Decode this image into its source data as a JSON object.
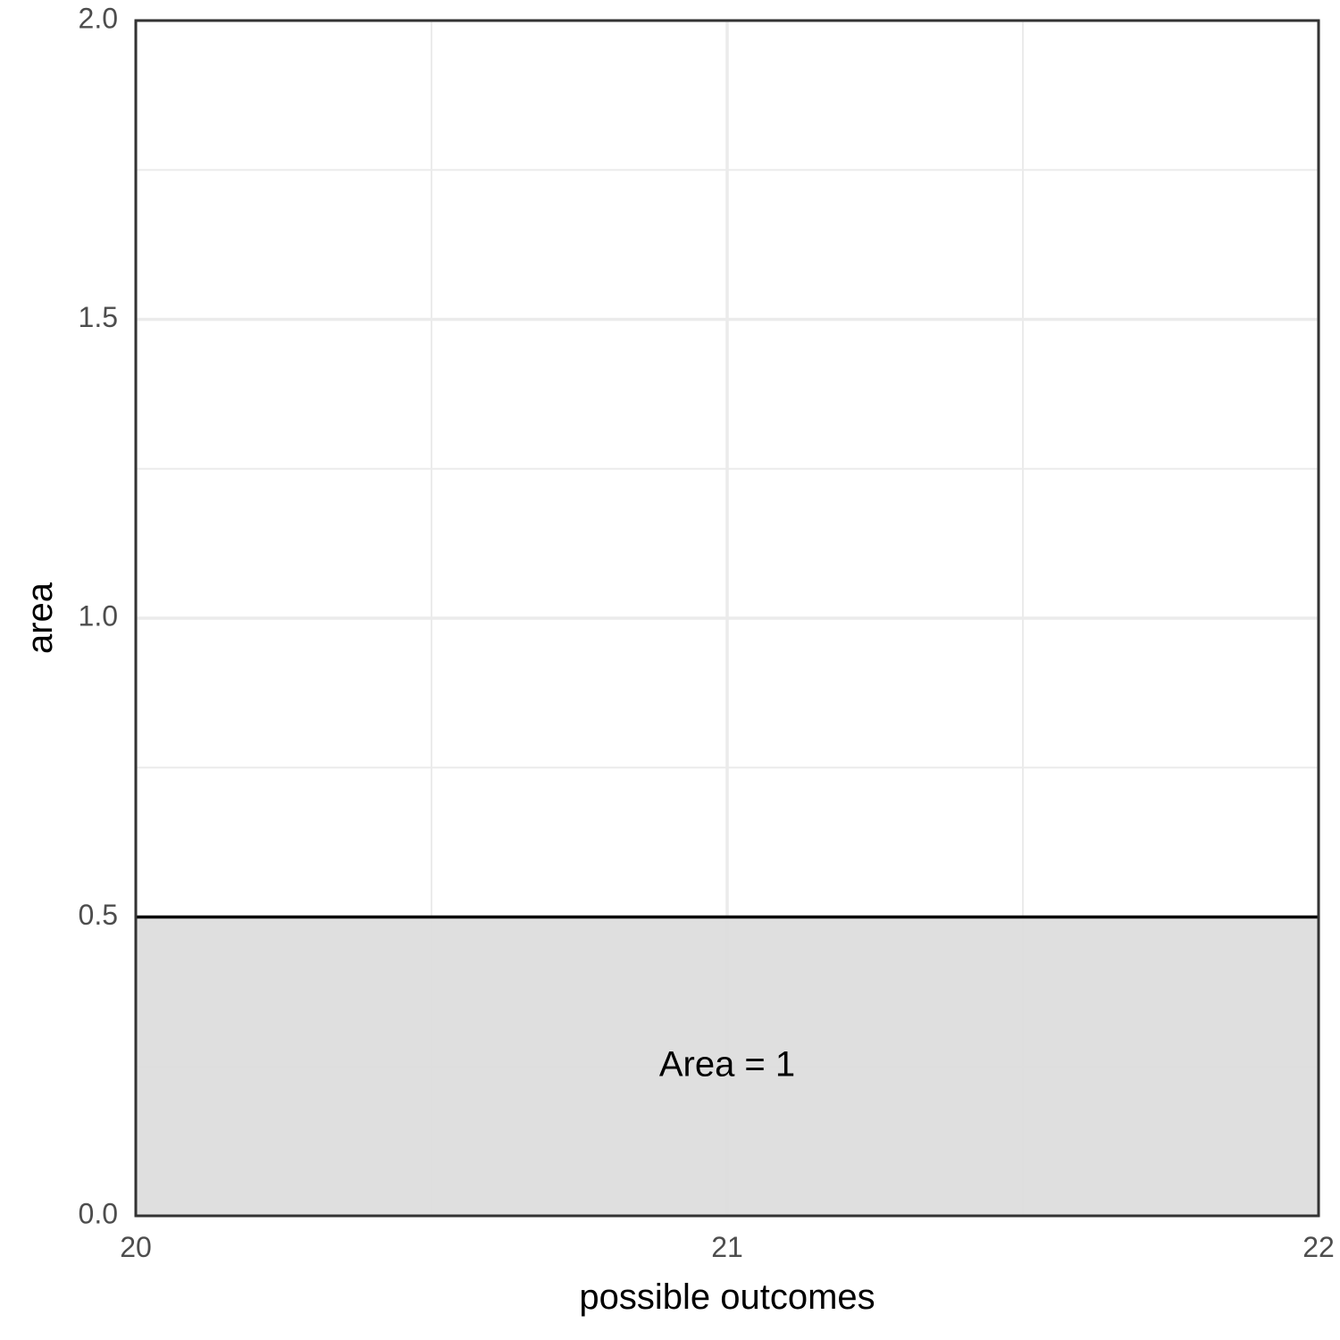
{
  "chart_data": {
    "type": "area",
    "xlabel": "possible outcomes",
    "ylabel": "area",
    "xlim": [
      20,
      22
    ],
    "ylim": [
      0,
      2
    ],
    "x_ticks": [
      20,
      21,
      22
    ],
    "x_tick_labels": [
      "20",
      "21",
      "22"
    ],
    "y_ticks": [
      0,
      0.5,
      1,
      1.5,
      2
    ],
    "y_tick_labels": [
      "0.0",
      "0.5",
      "1.0",
      "1.5",
      "2.0"
    ],
    "grid": true,
    "series": [
      {
        "x": [
          20,
          22
        ],
        "y": [
          0.5,
          0.5
        ],
        "fill": true
      }
    ],
    "annotations": [
      {
        "text": "Area = 1",
        "x": 21,
        "y": 0.25
      }
    ],
    "colors": {
      "fill": "#dddddd",
      "line": "#000000",
      "grid": "#ebebeb",
      "panel_border": "#333333",
      "tick_text": "#4d4d4d"
    }
  }
}
